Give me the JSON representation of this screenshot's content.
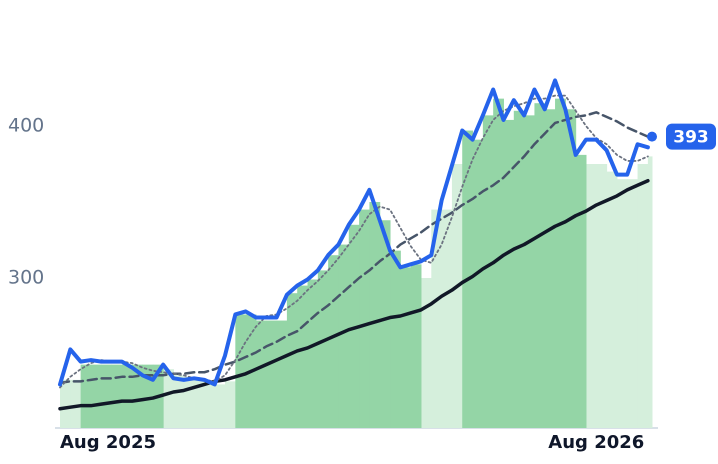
{
  "chart_data": {
    "type": "line",
    "xlim": [
      0,
      57.4
    ],
    "xticks": [
      {
        "value": 0,
        "label": "Aug 2025"
      },
      {
        "value": 52,
        "label": "Aug 2026"
      }
    ],
    "ylim": [
      200,
      480
    ],
    "yticks": [
      300,
      400
    ],
    "areas": [
      {
        "color": "#d5efdc",
        "values": [
          233,
          233,
          null,
          null,
          null,
          null,
          null,
          null,
          null,
          null,
          240,
          236,
          235,
          233,
          232,
          230,
          232,
          null,
          null,
          null,
          null,
          null,
          null,
          null,
          null,
          null,
          null,
          null,
          null,
          null,
          null,
          null,
          null,
          null,
          null,
          300,
          345,
          345,
          375,
          null,
          null,
          null,
          null,
          null,
          null,
          null,
          null,
          null,
          null,
          null,
          null,
          375,
          375,
          370,
          365,
          365,
          375,
          380
        ]
      },
      {
        "color": "#94d5a6",
        "values": [
          null,
          null,
          243,
          243,
          243,
          243,
          243,
          243,
          243,
          243,
          null,
          null,
          null,
          null,
          null,
          null,
          null,
          276,
          276,
          272,
          272,
          272,
          290,
          295,
          299,
          305,
          315,
          322,
          335,
          345,
          350,
          338,
          318,
          307,
          309,
          null,
          null,
          null,
          null,
          397,
          391,
          407,
          418,
          404,
          410,
          407,
          415,
          411,
          418,
          411,
          381,
          null,
          null,
          null,
          null,
          null,
          null,
          null
        ]
      }
    ],
    "series": [
      {
        "color": "#2563eb",
        "style": "solid",
        "values": [
          230,
          253,
          245,
          246,
          245,
          245,
          245,
          241,
          236,
          233,
          243,
          234,
          233,
          234,
          233,
          230,
          249,
          276,
          278,
          274,
          274,
          274,
          289,
          295,
          299,
          305,
          315,
          322,
          335,
          345,
          358,
          338,
          318,
          307,
          309,
          311,
          315,
          351,
          374,
          397,
          391,
          407,
          424,
          404,
          417,
          407,
          424,
          411,
          430,
          411,
          381,
          391,
          391,
          384,
          368,
          368,
          388,
          386
        ]
      },
      {
        "color": "#6b7280",
        "style": "dotted",
        "values": [
          228,
          235,
          240,
          244,
          246,
          245,
          245,
          244,
          241,
          239,
          238,
          237,
          236,
          234,
          233,
          232,
          236,
          246,
          258,
          268,
          275,
          276,
          280,
          285,
          292,
          298,
          305,
          313,
          322,
          331,
          342,
          347,
          345,
          333,
          321,
          312,
          310,
          322,
          340,
          360,
          378,
          392,
          404,
          410,
          413,
          415,
          418,
          418,
          420,
          420,
          410,
          400,
          392,
          388,
          381,
          377,
          377,
          380
        ]
      },
      {
        "color": "#475569",
        "style": "dashed",
        "values": [
          231,
          232,
          232,
          233,
          234,
          234,
          235,
          235,
          236,
          236,
          236,
          237,
          237,
          238,
          238,
          240,
          243,
          245,
          248,
          251,
          255,
          258,
          262,
          265,
          271,
          277,
          282,
          288,
          294,
          300,
          305,
          311,
          316,
          322,
          326,
          330,
          335,
          339,
          343,
          348,
          352,
          357,
          361,
          366,
          373,
          380,
          388,
          395,
          402,
          404,
          406,
          407,
          409,
          406,
          403,
          399,
          396,
          393
        ]
      },
      {
        "color": "#111827",
        "style": "solid-thick",
        "values": [
          214,
          215,
          216,
          216,
          217,
          218,
          219,
          219,
          220,
          221,
          223,
          225,
          226,
          228,
          230,
          232,
          233,
          235,
          237,
          240,
          243,
          246,
          249,
          252,
          254,
          257,
          260,
          263,
          266,
          268,
          270,
          272,
          274,
          275,
          277,
          279,
          283,
          288,
          292,
          297,
          301,
          306,
          310,
          315,
          319,
          322,
          326,
          330,
          334,
          337,
          341,
          344,
          348,
          351,
          354,
          358,
          361,
          364
        ]
      }
    ]
  }
}
